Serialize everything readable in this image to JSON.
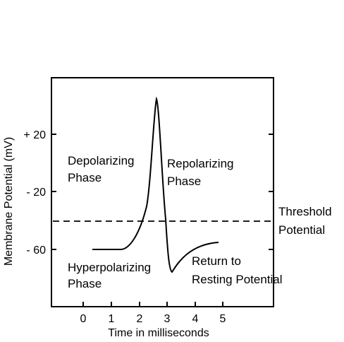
{
  "y_axis": {
    "title": "Membrane Potential (mV)",
    "ticks": [
      {
        "label": "+ 20",
        "value": 20
      },
      {
        "label": "- 20",
        "value": -20
      },
      {
        "label": "- 60",
        "value": -60
      }
    ]
  },
  "x_axis": {
    "title": "Time in milliseconds",
    "ticks": [
      "0",
      "1",
      "2",
      "3",
      "4",
      "5"
    ]
  },
  "threshold": {
    "line1": "Threshold",
    "line2": "Potential"
  },
  "phases": {
    "depolarizing": {
      "line1": "Depolarizing",
      "line2": "Phase"
    },
    "repolarizing": {
      "line1": "Repolarizing",
      "line2": "Phase"
    },
    "hyperpolarizing": {
      "line1": "Hyperpolarizing",
      "line2": "Phase"
    },
    "resting": {
      "line1": "Return to",
      "line2": "Resting Potential"
    }
  }
}
